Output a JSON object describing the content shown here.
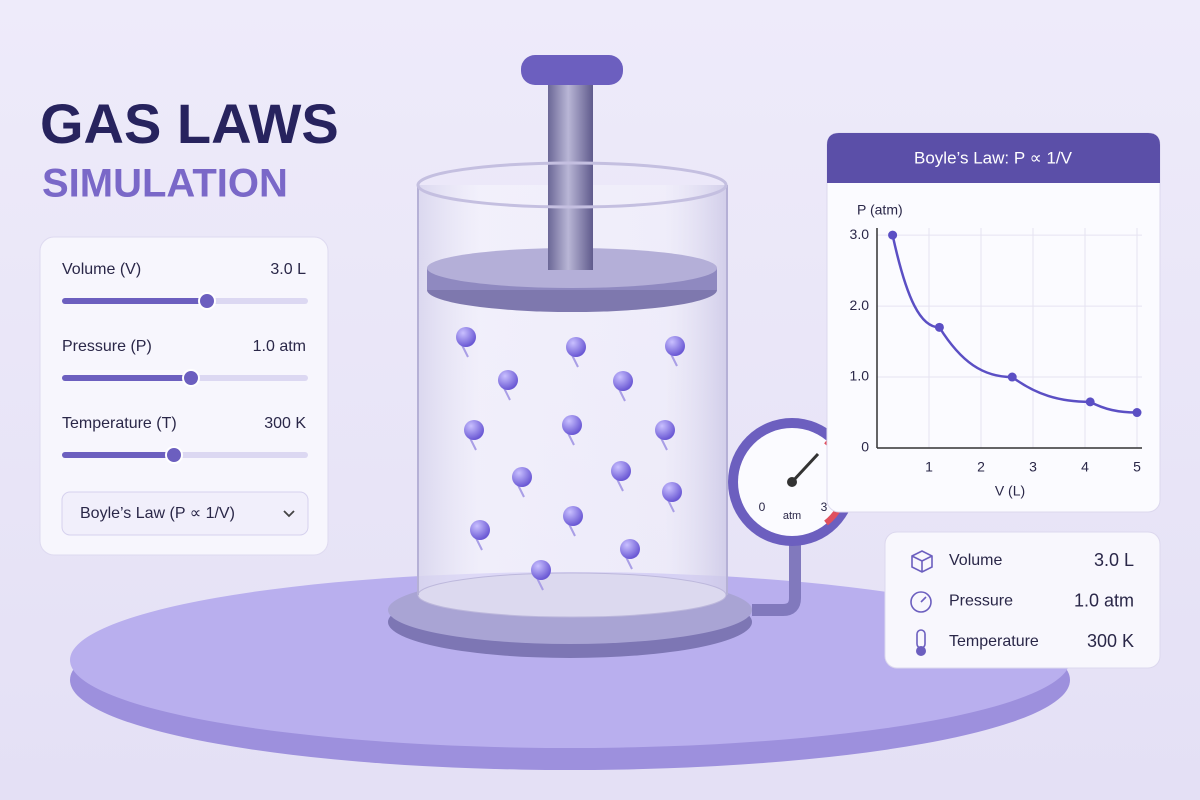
{
  "header": {
    "title": "GAS LAWS",
    "subtitle": "SIMULATION"
  },
  "controls": {
    "sliders": [
      {
        "label": "Volume (V)",
        "value": "3.0 L"
      },
      {
        "label": "Pressure (P)",
        "value": "1.0 atm"
      },
      {
        "label": "Temperature (T)",
        "value": "300 K"
      }
    ],
    "dropdown": "Boyle’s Law (P ∝ 1/V)"
  },
  "gauge": {
    "min": "0",
    "max": "3",
    "unit": "atm"
  },
  "chart_data": {
    "type": "line",
    "title": "Boyle’s Law:  P ∝ 1/V",
    "x_label": "V (L)",
    "y_label": "P (atm)",
    "x": [
      0.3,
      1.2,
      2.6,
      4.1,
      5.0
    ],
    "series": [
      {
        "name": "P",
        "color": "#5b4fc4",
        "values": [
          3.0,
          1.7,
          1.0,
          0.65,
          0.5
        ]
      }
    ],
    "xlim": [
      0,
      5
    ],
    "ylim": [
      0,
      3.1
    ],
    "xticks": [
      1,
      2,
      3,
      4,
      5
    ],
    "yticks": [
      0,
      {
        "value": 1,
        "label": "1.0"
      },
      {
        "value": 2,
        "label": "2.0"
      },
      {
        "value": 3,
        "label": "3.0"
      }
    ],
    "grid": true
  },
  "readouts": [
    {
      "label": "Volume",
      "value": "3.0 L"
    },
    {
      "label": "Pressure",
      "value": "1.0 atm"
    },
    {
      "label": "Temperature",
      "value": "300 K"
    }
  ]
}
